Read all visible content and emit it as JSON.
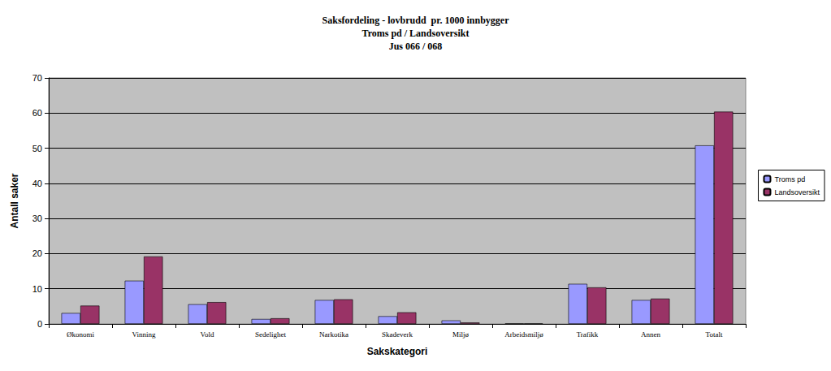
{
  "chart_data": {
    "type": "bar",
    "title": "Saksfordeling - lovbrudd  pr. 1000 innbygger\nTroms pd / Landsoversikt\nJus 066 / 068",
    "x_label": "Sakskategori",
    "y_label": "Antall saker",
    "categories": [
      "Økonomi",
      "Vinning",
      "Vold",
      "Sedelighet",
      "Narkotika",
      "Skadeverk",
      "Miljø",
      "Arbeidsmiljø",
      "Trafikk",
      "Annen",
      "Totalt"
    ],
    "series": [
      {
        "name": "Troms pd",
        "color": "#9999ff",
        "values": [
          3.1,
          12.3,
          5.6,
          1.4,
          6.8,
          2.2,
          1.0,
          0.1,
          11.4,
          6.8,
          50.8
        ]
      },
      {
        "name": "Landsoversikt",
        "color": "#993366",
        "values": [
          5.2,
          19.2,
          6.2,
          1.6,
          7.0,
          3.3,
          0.4,
          0.1,
          10.4,
          7.2,
          60.4
        ]
      }
    ],
    "ylim": [
      0,
      70
    ],
    "yticks": [
      0,
      10,
      20,
      30,
      40,
      50,
      60,
      70
    ],
    "grid": true,
    "legend": "right"
  }
}
